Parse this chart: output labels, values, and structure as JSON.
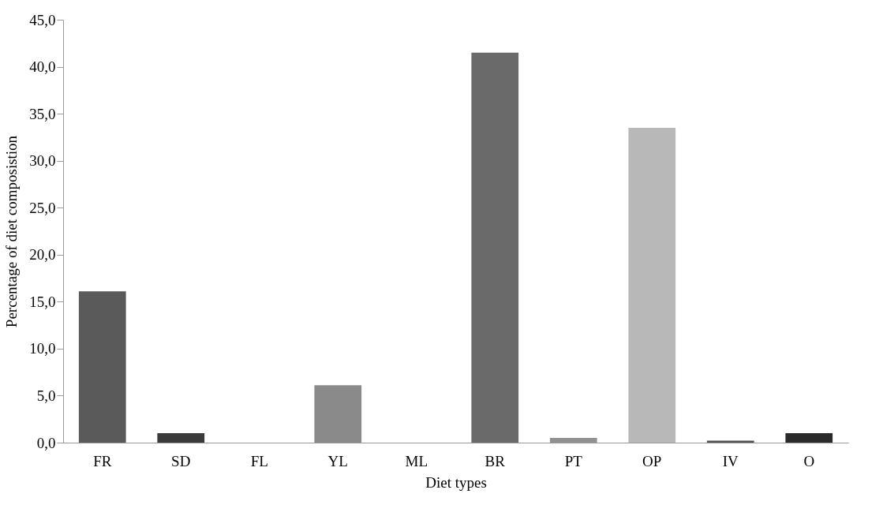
{
  "chart_data": {
    "type": "bar",
    "xlabel": "Diet types",
    "ylabel": "Percentage  of  diet composistion",
    "categories": [
      "FR",
      "SD",
      "FL",
      "YL",
      "ML",
      "BR",
      "PT",
      "OP",
      "IV",
      "O"
    ],
    "values": [
      16.1,
      1.0,
      0,
      6.1,
      0,
      41.5,
      0.5,
      33.5,
      0.2,
      1.0
    ],
    "colors": [
      "#5a5a5a",
      "#3a3a3a",
      "#808080",
      "#8a8a8a",
      "#808080",
      "#6a6a6a",
      "#909090",
      "#b8b8b8",
      "#505050",
      "#2a2a2a"
    ],
    "ylim": [
      0,
      45
    ],
    "yticks": [
      {
        "value": 0,
        "label": "0,0"
      },
      {
        "value": 5,
        "label": "5,0"
      },
      {
        "value": 10,
        "label": "10,0"
      },
      {
        "value": 15,
        "label": "15,0"
      },
      {
        "value": 20,
        "label": "20,0"
      },
      {
        "value": 25,
        "label": "25,0"
      },
      {
        "value": 30,
        "label": "30,0"
      },
      {
        "value": 35,
        "label": "35,0"
      },
      {
        "value": 40,
        "label": "40,0"
      },
      {
        "value": 45,
        "label": "45,0"
      }
    ],
    "grid": false,
    "legend": false
  }
}
